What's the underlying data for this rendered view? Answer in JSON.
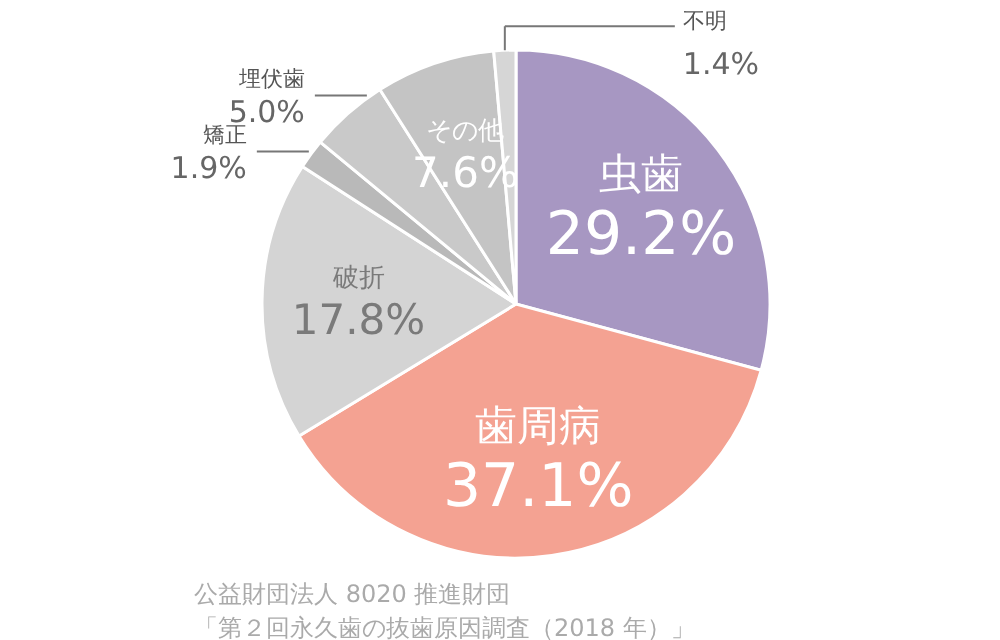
{
  "chart_data": {
    "type": "pie",
    "categories": [
      "虫歯",
      "歯周病",
      "破折",
      "矯正",
      "埋伏歯",
      "その他",
      "不明"
    ],
    "values": [
      29.2,
      37.1,
      17.8,
      1.9,
      5.0,
      7.6,
      1.4
    ],
    "colors": [
      "#a797c2",
      "#f4a292",
      "#d4d4d4",
      "#b9b9b9",
      "#c9c9c9",
      "#c4c4c4",
      "#d6d6d6"
    ],
    "value_labels": [
      "29.2%",
      "37.1%",
      "17.8%",
      "1.9%",
      "5.0%",
      "7.6%",
      "1.4%"
    ],
    "annotations": [
      "公益財団法人 8020 推進財団",
      "「第２回永久歯の抜歯原因調査（2018 年）」"
    ]
  }
}
